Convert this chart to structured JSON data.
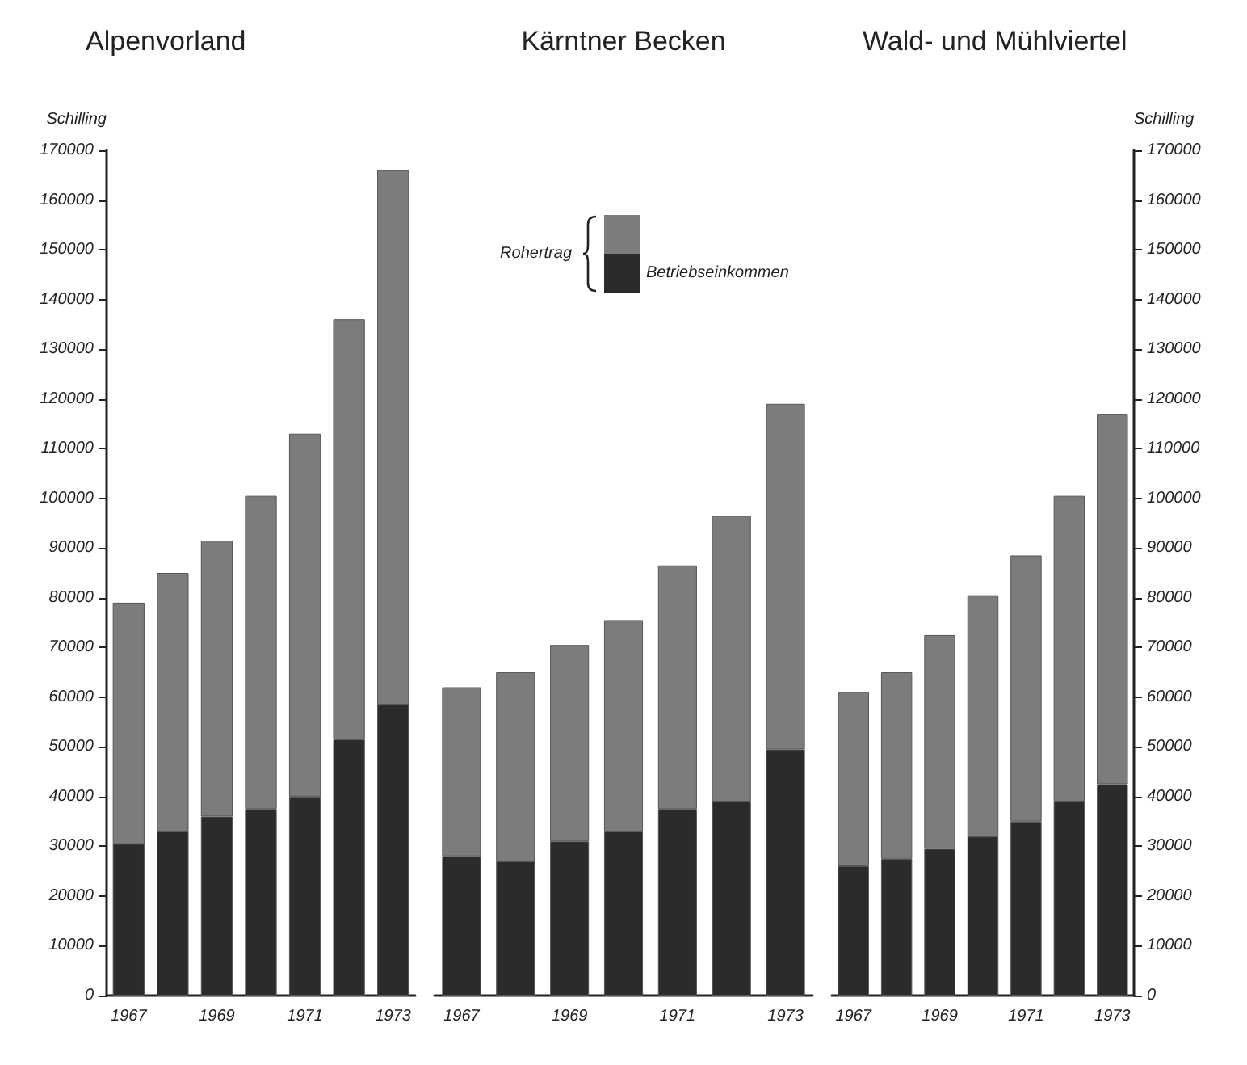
{
  "chart_data": [
    {
      "type": "bar",
      "title": "Alpenvorland",
      "ylabel": "Schilling",
      "categories": [
        "1967",
        null,
        "1969",
        null,
        "1971",
        null,
        "1973"
      ],
      "stacked": true,
      "series": [
        {
          "color": "#2b2b2b",
          "values": [
            30500,
            33000,
            36000,
            37500,
            40000,
            51500,
            58500
          ]
        },
        {
          "color": "#7c7c7c",
          "values": [
            48500,
            52000,
            55500,
            63000,
            73000,
            84500,
            107500
          ]
        }
      ],
      "ylim": [
        0,
        170000
      ],
      "yticks": [
        0,
        10000,
        20000,
        30000,
        40000,
        50000,
        60000,
        70000,
        80000,
        90000,
        100000,
        110000,
        120000,
        130000,
        140000,
        150000,
        160000,
        170000
      ],
      "grid": false,
      "legend": false
    },
    {
      "type": "bar",
      "title": "Kärntner Becken",
      "legend_title": "Rohertrag",
      "categories": [
        "1967",
        null,
        "1969",
        null,
        "1971",
        null,
        "1973"
      ],
      "stacked": true,
      "series": [
        {
          "name": "Betriebseinkommen",
          "color": "#2b2b2b",
          "values": [
            28000,
            27000,
            31000,
            33000,
            37500,
            39000,
            49500
          ]
        },
        {
          "color": "#7c7c7c",
          "values": [
            34000,
            38000,
            39500,
            42500,
            49000,
            57500,
            69500
          ]
        }
      ],
      "ylim": [
        0,
        170000
      ],
      "tick_labels": "x",
      "grid": false,
      "legend": "top right"
    },
    {
      "type": "bar",
      "title": "Wald- und Mühlviertel",
      "ylabel": "Schilling",
      "categories": [
        "1967",
        null,
        "1969",
        null,
        "1971",
        null,
        "1973"
      ],
      "stacked": true,
      "series": [
        {
          "color": "#2b2b2b",
          "values": [
            26000,
            27500,
            29500,
            32000,
            35000,
            39000,
            42500
          ]
        },
        {
          "color": "#7c7c7c",
          "values": [
            35000,
            37500,
            43000,
            48500,
            53500,
            61500,
            74500
          ]
        }
      ],
      "ylim": [
        0,
        170000
      ],
      "yticks": [
        0,
        10000,
        20000,
        30000,
        40000,
        50000,
        60000,
        70000,
        80000,
        90000,
        100000,
        110000,
        120000,
        130000,
        140000,
        150000,
        160000,
        170000
      ],
      "grid": false,
      "legend": false
    }
  ]
}
